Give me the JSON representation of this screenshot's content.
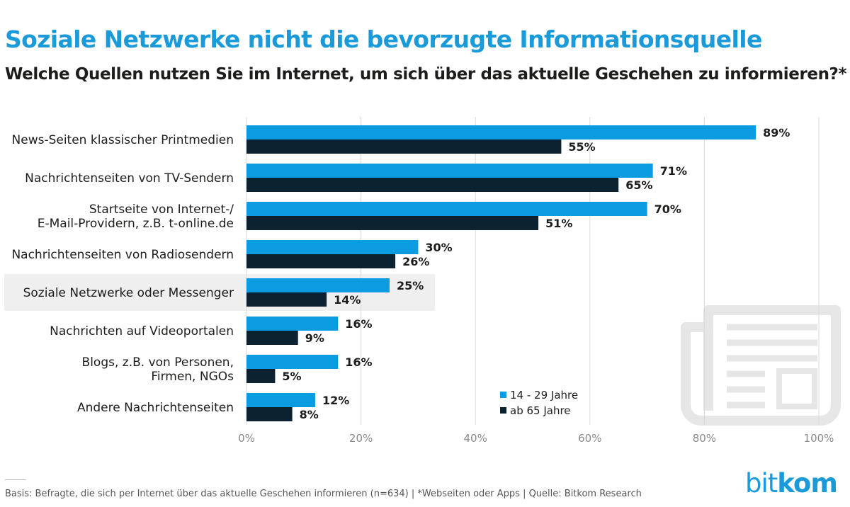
{
  "title": "Soziale Netzwerke nicht die bevorzugte Informationsquelle",
  "subtitle": "Welche Quellen nutzen Sie im Internet, um sich über das aktuelle Geschehen zu informieren?*",
  "chart_data": {
    "type": "bar",
    "orientation": "horizontal",
    "categories": [
      [
        "News-Seiten klassischer Printmedien"
      ],
      [
        "Nachrichtenseiten von TV-Sendern"
      ],
      [
        "Startseite von Internet-/",
        "E-Mail-Providern, z.B. t-online.de"
      ],
      [
        "Nachrichtenseiten von Radiosendern"
      ],
      [
        "Soziale Netzwerke oder Messenger"
      ],
      [
        "Nachrichten auf Videoportalen"
      ],
      [
        "Blogs, z.B. von Personen,",
        "Firmen, NGOs"
      ],
      [
        "Andere Nachrichtenseiten"
      ]
    ],
    "highlighted_category_index": 4,
    "series": [
      {
        "name": "14 - 29 Jahre",
        "color": "#0b9be0",
        "values": [
          89,
          71,
          70,
          30,
          25,
          16,
          16,
          12
        ]
      },
      {
        "name": "ab 65 Jahre",
        "color": "#0d2230",
        "values": [
          55,
          65,
          51,
          26,
          14,
          9,
          5,
          8
        ]
      }
    ],
    "value_suffix": "%",
    "xlim": [
      0,
      100
    ],
    "xticks": [
      0,
      20,
      40,
      60,
      80,
      100
    ],
    "xtick_labels": [
      "0%",
      "20%",
      "40%",
      "60%",
      "80%",
      "100%"
    ],
    "grid": true,
    "legend_position": "bottom-right",
    "highlight_color": "#efefef",
    "gridline_color": "#d9d9d9"
  },
  "footer": {
    "note": "Basis: Befragte, die sich per Internet über das aktuelle Geschehen informieren (n=634) | *Webseiten oder Apps | Quelle: Bitkom Research"
  },
  "logo": {
    "part1": "bit",
    "part2": "kom",
    "color": "#1b9ad9"
  },
  "icons": {
    "decoration": "newspaper-icon"
  }
}
